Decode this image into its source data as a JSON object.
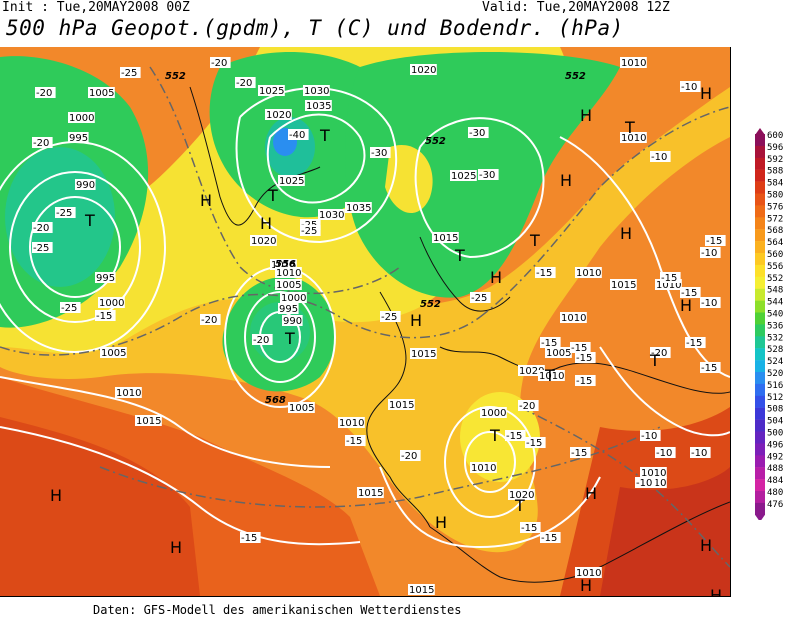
{
  "header": {
    "init": "Init : Tue,20MAY2008 00Z",
    "valid": "Valid: Tue,20MAY2008 12Z",
    "title": "500 hPa Geopot.(gpdm), T (C) und Bodendr. (hPa)"
  },
  "footer": "Daten: GFS-Modell des amerikanischen Wetterdienstes",
  "legend": {
    "levels": [
      600,
      596,
      592,
      588,
      584,
      580,
      576,
      572,
      568,
      564,
      560,
      556,
      552,
      548,
      544,
      540,
      536,
      532,
      528,
      524,
      520,
      516,
      512,
      508,
      504,
      500,
      496,
      492,
      488,
      484,
      480,
      476
    ],
    "colors": [
      "#8b0f5a",
      "#a8123a",
      "#bf1a26",
      "#d0261b",
      "#de3d16",
      "#e85417",
      "#ef6b17",
      "#f48419",
      "#f89a1c",
      "#fbb11f",
      "#fdc923",
      "#fde02a",
      "#f5ef34",
      "#c8ea2e",
      "#8ddf2a",
      "#4fd136",
      "#2ecb60",
      "#1fc794",
      "#14c4c6",
      "#19b2e6",
      "#2a8ef0",
      "#2f6ef0",
      "#3450e8",
      "#3c38d8",
      "#4e2cc8",
      "#6424c0",
      "#7c1fb8",
      "#9a1cb0",
      "#b81fa8",
      "#d424a4",
      "#b31f9f",
      "#8a1a8c"
    ]
  },
  "map_labels": {
    "pressure": [
      "1005",
      "1000",
      "995",
      "990",
      "995",
      "1000",
      "1005",
      "1010",
      "1015",
      "1020",
      "1025",
      "1030",
      "1035",
      "1020",
      "1025",
      "1030",
      "1035",
      "1020",
      "1025",
      "1015",
      "1015",
      "1010",
      "1005",
      "1000",
      "995",
      "990",
      "1005",
      "1010",
      "1015",
      "1015",
      "1020",
      "1010",
      "1005",
      "1010",
      "1000",
      "1010",
      "1010",
      "1015",
      "1010",
      "1010",
      "1010",
      "1010",
      "1010",
      "1015",
      "1020",
      "1015",
      "1010"
    ],
    "temps": [
      "-20",
      "-20",
      "-20",
      "-25",
      "-25",
      "-25",
      "-15",
      "-20",
      "-25",
      "-40",
      "-30",
      "-30",
      "-30",
      "-25",
      "-25",
      "-20",
      "-20",
      "-25",
      "-20",
      "-25",
      "-15",
      "-15",
      "-15",
      "-15",
      "-20",
      "-15",
      "-15",
      "-15",
      "-15",
      "-20",
      "-15",
      "-15",
      "-10",
      "-10",
      "-10",
      "-10",
      "-15",
      "-15",
      "-10",
      "-10",
      "-10",
      "-15",
      "-15",
      "-15",
      "-20",
      "-15",
      "-15",
      "-10"
    ],
    "geopot": [
      "552",
      "552",
      "552",
      "552",
      "568",
      "556"
    ],
    "highs": [
      "H",
      "H",
      "H",
      "H",
      "H",
      "H",
      "H",
      "H",
      "H",
      "H",
      "H",
      "H",
      "H",
      "H",
      "H",
      "H",
      "H"
    ],
    "lows": [
      "T",
      "T",
      "T",
      "T",
      "T",
      "T",
      "T",
      "T",
      "T",
      "T",
      "T"
    ]
  }
}
